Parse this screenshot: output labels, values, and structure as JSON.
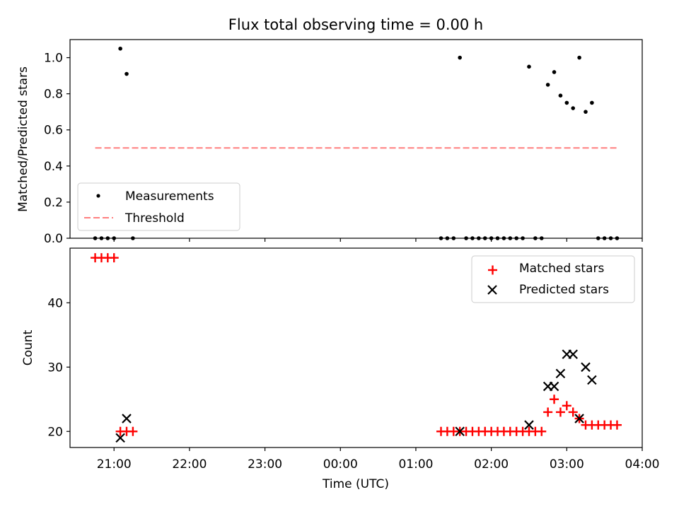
{
  "chart_data": [
    {
      "type": "scatter",
      "panel": "top",
      "title": "Flux total observing time = 0.00 h",
      "xlabel": "",
      "ylabel": "Matched/Predicted stars",
      "ylim": [
        0,
        1.1
      ],
      "yticks": [
        0.0,
        0.2,
        0.4,
        0.6,
        0.8,
        1.0
      ],
      "ytick_labels": [
        "0.0",
        "0.2",
        "0.4",
        "0.6",
        "0.8",
        "1.0"
      ],
      "legend_position": "lower-left",
      "series": [
        {
          "name": "Measurements",
          "marker": "dot",
          "color": "#000000",
          "x": [
            "20:45",
            "20:50",
            "20:55",
            "21:00",
            "21:05",
            "21:10",
            "21:15",
            "01:20",
            "01:25",
            "01:30",
            "01:35",
            "01:40",
            "01:45",
            "01:50",
            "01:55",
            "02:00",
            "02:05",
            "02:10",
            "02:15",
            "02:20",
            "02:25",
            "02:30",
            "02:35",
            "02:40",
            "02:45",
            "02:50",
            "02:55",
            "03:00",
            "03:05",
            "03:10",
            "03:15",
            "03:20",
            "03:25",
            "03:30",
            "03:35",
            "03:40"
          ],
          "y": [
            0.0,
            0.0,
            0.0,
            0.0,
            1.05,
            0.91,
            0.0,
            0.0,
            0.0,
            0.0,
            1.0,
            0.0,
            0.0,
            0.0,
            0.0,
            0.0,
            0.0,
            0.0,
            0.0,
            0.0,
            0.0,
            0.95,
            0.0,
            0.0,
            0.85,
            0.92,
            0.79,
            0.75,
            0.72,
            1.0,
            0.7,
            0.75,
            0.0,
            0.0,
            0.0,
            0.0
          ]
        },
        {
          "name": "Threshold",
          "style": "dashed-line",
          "color": "#ff7f7f",
          "x": [
            "20:45",
            "03:40"
          ],
          "y": [
            0.5,
            0.5
          ]
        }
      ]
    },
    {
      "type": "scatter",
      "panel": "bottom",
      "xlabel": "Time (UTC)",
      "ylabel": "Count",
      "ylim": [
        17.5,
        48.5
      ],
      "yticks": [
        20,
        30,
        40
      ],
      "ytick_labels": [
        "20",
        "30",
        "40"
      ],
      "xlim": [
        "20:25",
        "04:00"
      ],
      "xticks": [
        "21:00",
        "22:00",
        "23:00",
        "00:00",
        "01:00",
        "02:00",
        "03:00",
        "04:00"
      ],
      "xtick_labels": [
        "21:00",
        "22:00",
        "23:00",
        "00:00",
        "01:00",
        "02:00",
        "03:00",
        "04:00"
      ],
      "legend_position": "upper-right",
      "series": [
        {
          "name": "Matched stars",
          "marker": "plus",
          "color": "#ff0000",
          "x": [
            "20:45",
            "20:50",
            "20:55",
            "21:00",
            "21:05",
            "21:10",
            "21:15",
            "01:20",
            "01:25",
            "01:30",
            "01:35",
            "01:40",
            "01:45",
            "01:50",
            "01:55",
            "02:00",
            "02:05",
            "02:10",
            "02:15",
            "02:20",
            "02:25",
            "02:30",
            "02:35",
            "02:40",
            "02:45",
            "02:50",
            "02:55",
            "03:00",
            "03:05",
            "03:10",
            "03:15",
            "03:20",
            "03:25",
            "03:30",
            "03:35",
            "03:40"
          ],
          "y": [
            47,
            47,
            47,
            47,
            20,
            20,
            20,
            20,
            20,
            20,
            20,
            20,
            20,
            20,
            20,
            20,
            20,
            20,
            20,
            20,
            20,
            20,
            20,
            20,
            23,
            25,
            23,
            24,
            23,
            22,
            21,
            21,
            21,
            21,
            21,
            21
          ]
        },
        {
          "name": "Predicted stars",
          "marker": "x",
          "color": "#000000",
          "x": [
            "21:05",
            "21:10",
            "01:35",
            "02:30",
            "02:45",
            "02:50",
            "02:55",
            "03:00",
            "03:05",
            "03:10",
            "03:15",
            "03:20"
          ],
          "y": [
            19,
            22,
            20,
            21,
            27,
            27,
            29,
            32,
            32,
            22,
            30,
            28
          ]
        }
      ]
    }
  ]
}
